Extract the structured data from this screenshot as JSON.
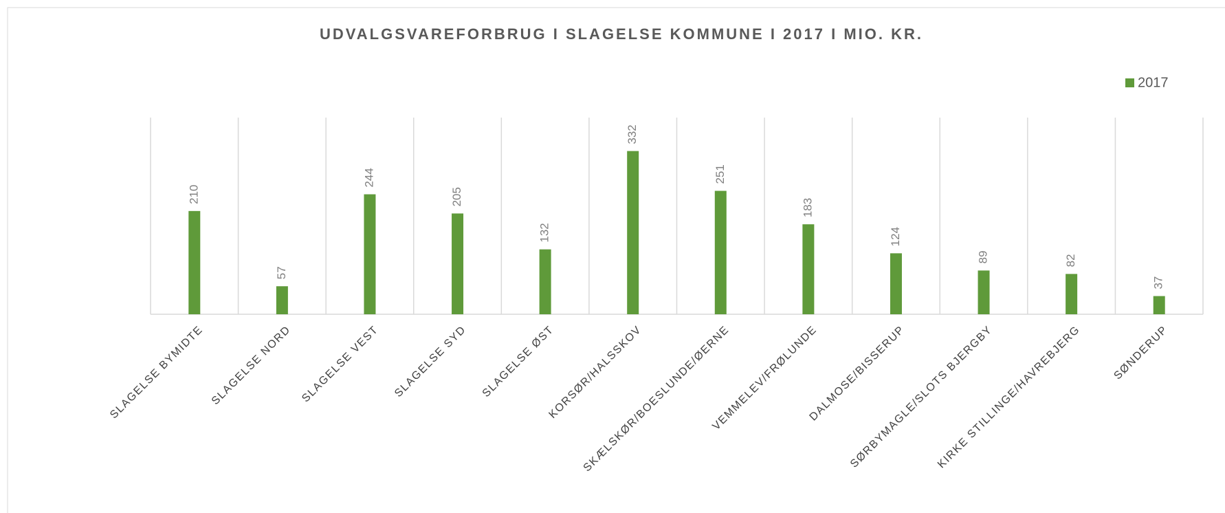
{
  "chart_data": {
    "type": "bar",
    "title": "UDVALGSVAREFORBRUG I SLAGELSE KOMMUNE I 2017 I MIO. KR.",
    "categories": [
      "SLAGELSE BYMIDTE",
      "SLAGELSE NORD",
      "SLAGELSE VEST",
      "SLAGELSE SYD",
      "SLAGELSE ØST",
      "KORSØR/HALSSKOV",
      "SKÆLSKØR/BOESLUNDE/ØERNE",
      "VEMMELEV/FRØLUNDE",
      "DALMOSE/BISSERUP",
      "SØRBYMAGLE/SLOTS BJERGBY",
      "KIRKE STILLINGE/HAVREBJERG",
      "SØNDERUP"
    ],
    "series": [
      {
        "name": "2017",
        "color": "#5f9a3a",
        "values": [
          210,
          57,
          244,
          205,
          132,
          332,
          251,
          183,
          124,
          89,
          82,
          37
        ]
      }
    ],
    "ylim": [
      0,
      400
    ],
    "legend": "top-right"
  }
}
